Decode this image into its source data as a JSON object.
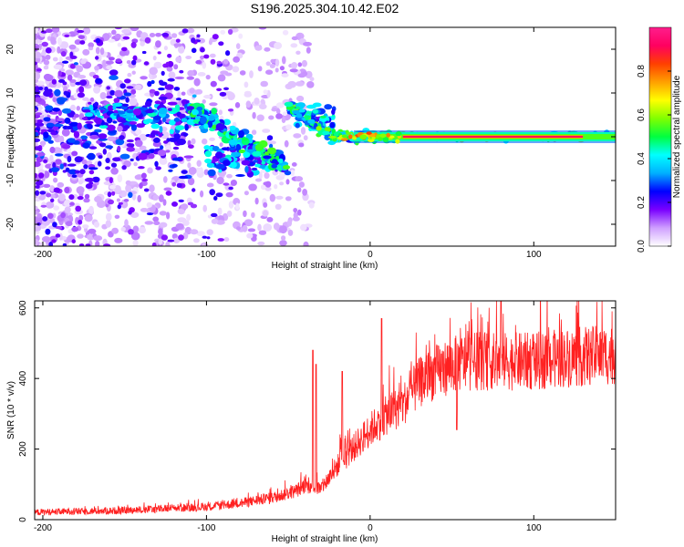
{
  "title": "S196.2025.304.10.42.E02",
  "chart_data": [
    {
      "type": "heatmap",
      "name": "spectrogram",
      "xlabel": "Height of straight line (km)",
      "ylabel": "Frequency (Hz)",
      "xlim": [
        -205,
        150
      ],
      "ylim": [
        -25,
        25
      ],
      "xticks": [
        -200,
        -100,
        0,
        100
      ],
      "yticks": [
        -20,
        -10,
        0,
        10,
        20
      ],
      "colorbar": {
        "label": "Normalized spectral amplitude",
        "range": [
          0,
          1
        ],
        "ticks": [
          0.0,
          0.2,
          0.4,
          0.6,
          0.8
        ],
        "stops": [
          "#ffffff",
          "#cf9fff",
          "#7a00ff",
          "#0000ff",
          "#00b0ff",
          "#00ffff",
          "#00ff40",
          "#80ff00",
          "#ffff00",
          "#ffa000",
          "#ff4000",
          "#ff0060",
          "#ff1e8c"
        ]
      },
      "features": [
        {
          "x_range": [
            -205,
            -110
          ],
          "freq_center": 2,
          "spread": 22,
          "peak_amplitude": 0.3
        },
        {
          "x_range": [
            -175,
            -100
          ],
          "freq_center": 5,
          "spread": 5,
          "peak_amplitude": 0.45
        },
        {
          "x_range": [
            -100,
            -55
          ],
          "freq_center": -5,
          "spread": 6,
          "peak_amplitude": 0.45
        },
        {
          "x_range": [
            -50,
            -20
          ],
          "freq_center": 5,
          "spread": 5,
          "peak_amplitude": 0.5
        },
        {
          "x_range": [
            -20,
            15
          ],
          "freq_center": 0,
          "spread": 2,
          "peak_amplitude": 0.6
        },
        {
          "x_range": [
            15,
            150
          ],
          "freq_center": 0,
          "spread": 1,
          "peak_amplitude": 0.9
        }
      ]
    },
    {
      "type": "line",
      "name": "snr",
      "xlabel": "Height of straight line (km)",
      "ylabel": "SNR (10 * v/v)",
      "xlim": [
        -205,
        150
      ],
      "ylim": [
        0,
        620
      ],
      "xticks": [
        -200,
        -100,
        0,
        100
      ],
      "yticks": [
        0,
        200,
        400,
        600
      ],
      "color": "#ff2020",
      "trend": {
        "x": [
          -205,
          -150,
          -100,
          -80,
          -60,
          -45,
          -40,
          -30,
          -20,
          -10,
          0,
          10,
          20,
          30,
          40,
          50,
          60,
          80,
          100,
          120,
          150
        ],
        "y": [
          20,
          25,
          35,
          45,
          60,
          80,
          95,
          85,
          150,
          200,
          250,
          290,
          320,
          380,
          410,
          430,
          440,
          440,
          440,
          450,
          460
        ]
      },
      "spikes": [
        {
          "x": -35,
          "y": 480
        },
        {
          "x": -33,
          "y": 440
        },
        {
          "x": -17,
          "y": 420
        },
        {
          "x": 7,
          "y": 570
        },
        {
          "x": 53,
          "y": 255
        },
        {
          "x": 80,
          "y": 620
        }
      ]
    }
  ]
}
